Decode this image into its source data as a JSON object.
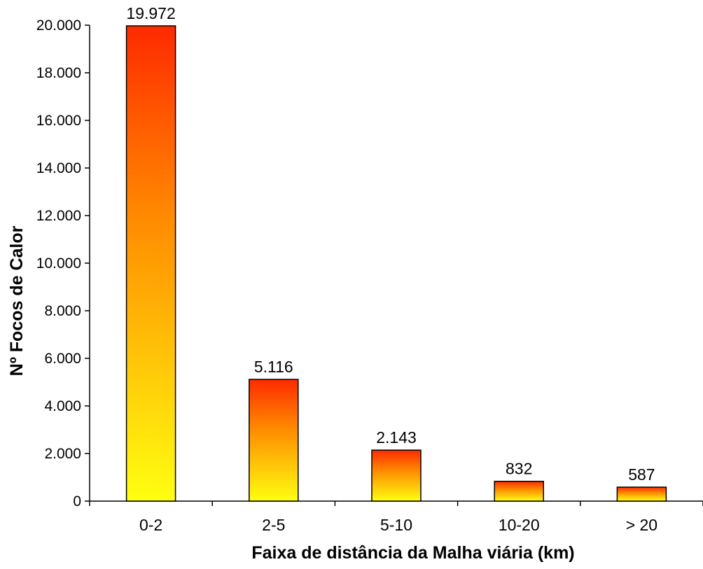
{
  "chart_data": {
    "type": "bar",
    "title": "",
    "xlabel": "Faixa de distância da Malha viária (km)",
    "ylabel": "Nº Focos de Calor",
    "categories": [
      "0-2",
      "2-5",
      "5-10",
      "10-20",
      "> 20"
    ],
    "values": [
      19972,
      5116,
      2143,
      832,
      587
    ],
    "value_labels": [
      "19.972",
      "5.116",
      "2.143",
      "832",
      "587"
    ],
    "ylim": [
      0,
      20000
    ],
    "yticks": [
      0,
      2000,
      4000,
      6000,
      8000,
      10000,
      12000,
      14000,
      16000,
      18000,
      20000
    ],
    "ytick_labels": [
      "0",
      "2.000",
      "4.000",
      "6.000",
      "8.000",
      "10.000",
      "12.000",
      "14.000",
      "16.000",
      "18.000",
      "20.000"
    ],
    "grid": false,
    "legend": "none",
    "colors": {
      "bar_top": "#ff2a00",
      "bar_bottom": "#ffff10",
      "bar_stroke": "#000000",
      "axis": "#000000"
    }
  }
}
